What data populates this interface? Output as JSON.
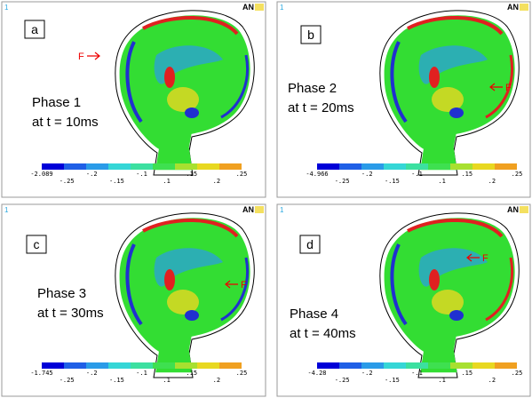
{
  "panels": [
    {
      "number": "1",
      "logo": "AN",
      "label": "a",
      "force": "F",
      "phase": "Phase 1",
      "time": "at t = 10ms",
      "legend_labels": [
        "-2.089",
        "-.25",
        "-.2",
        "-.15",
        "-.1",
        ".1",
        ".15",
        ".2",
        ".25"
      ]
    },
    {
      "number": "1",
      "logo": "AN",
      "label": "b",
      "force": "F",
      "phase": "Phase 2",
      "time": "at t = 20ms",
      "legend_labels": [
        "-4.966",
        "-.25",
        "-.2",
        "-.15",
        "-.1",
        ".1",
        ".15",
        ".2",
        ".25"
      ]
    },
    {
      "number": "1",
      "logo": "AN",
      "label": "c",
      "force": "F",
      "phase": "Phase 3",
      "time": "at t = 30ms",
      "legend_labels": [
        "-1.745",
        "-.25",
        "-.2",
        "-.15",
        "-.1",
        ".1",
        ".15",
        ".2",
        ".25"
      ]
    },
    {
      "number": "1",
      "logo": "AN",
      "label": "d",
      "force": "F",
      "phase": "Phase 4",
      "time": "at t = 40ms",
      "legend_labels": [
        "-4.28",
        "-.25",
        "-.2",
        "-.15",
        "-.1",
        ".1",
        ".15",
        ".2",
        ".25"
      ]
    }
  ]
}
